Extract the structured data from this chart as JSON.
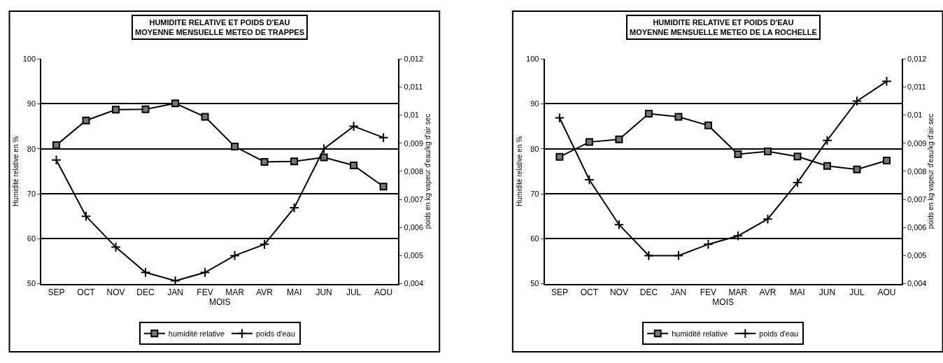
{
  "chart_data": [
    {
      "type": "line",
      "title": "HUMIDITE RELATIVE ET POIDS D'EAU",
      "subtitle": "MOYENNE MENSUELLE METEO DE TRAPPES",
      "xlabel": "MOIS",
      "ylabel": "Humidité relative en %",
      "y2label": "poids en kg vapeur d'eau/kg d'air sec",
      "categories": [
        "SEP",
        "OCT",
        "NOV",
        "DEC",
        "JAN",
        "FEV",
        "MAR",
        "AVR",
        "MAI",
        "JUN",
        "JUL",
        "AOU"
      ],
      "series": [
        {
          "name": "humidité relative",
          "color": "#000000",
          "marker": "square",
          "values": [
            80.8,
            86.3,
            88.7,
            88.8,
            90.1,
            87.1,
            80.5,
            77.1,
            77.2,
            78.1,
            76.3,
            71.6
          ]
        },
        {
          "name": "poids d'eau",
          "color": "#000000",
          "marker": "cross",
          "axis": "y2",
          "values": [
            0.0084,
            0.0064,
            0.0053,
            0.0044,
            0.0041,
            0.0044,
            0.005,
            0.0054,
            0.0067,
            0.0088,
            0.0096,
            0.0092
          ]
        }
      ],
      "ylim": [
        50,
        100
      ],
      "yticks": [
        50,
        60,
        70,
        80,
        90,
        100
      ],
      "y2lim": [
        0.004,
        0.012
      ],
      "y2ticks": [
        {
          "value": 0.004,
          "label": "0,004"
        },
        {
          "value": 0.005,
          "label": "0,005"
        },
        {
          "value": 0.006,
          "label": "0,006"
        },
        {
          "value": 0.007,
          "label": "0,007"
        },
        {
          "value": 0.008,
          "label": "0,008"
        },
        {
          "value": 0.009,
          "label": "0,009"
        },
        {
          "value": 0.01,
          "label": "0,01"
        },
        {
          "value": 0.011,
          "label": "0,011"
        },
        {
          "value": 0.012,
          "label": "0,012"
        }
      ],
      "grid": "y",
      "legend": "bottom"
    },
    {
      "type": "line",
      "title": "HUMIDITE RELATIVE ET POIDS D'EAU",
      "subtitle": "MOYENNE MENSUELLE METEO DE LA ROCHELLE",
      "xlabel": "MOIS",
      "ylabel": "Humidité relative en %",
      "y2label": "poids en kg vapeur d'eau/kg d'air sec",
      "categories": [
        "SEP",
        "OCT",
        "NOV",
        "DEC",
        "JAN",
        "FEV",
        "MAR",
        "AVR",
        "MAI",
        "JUN",
        "JUL",
        "AOU"
      ],
      "series": [
        {
          "name": "humidité relative",
          "color": "#000000",
          "marker": "square",
          "values": [
            78.2,
            81.5,
            82.1,
            87.8,
            87.1,
            85.2,
            78.8,
            79.4,
            78.3,
            76.2,
            75.4,
            77.4
          ]
        },
        {
          "name": "poids d'eau",
          "color": "#000000",
          "marker": "cross",
          "axis": "y2",
          "values": [
            0.0099,
            0.0077,
            0.0061,
            0.005,
            0.005,
            0.0054,
            0.0057,
            0.0063,
            0.0076,
            0.0091,
            0.0105,
            0.0112
          ]
        }
      ],
      "ylim": [
        50,
        100
      ],
      "yticks": [
        50,
        60,
        70,
        80,
        90,
        100
      ],
      "y2lim": [
        0.004,
        0.012
      ],
      "y2ticks": [
        {
          "value": 0.004,
          "label": "0,004"
        },
        {
          "value": 0.005,
          "label": "0,005"
        },
        {
          "value": 0.006,
          "label": "0,006"
        },
        {
          "value": 0.007,
          "label": "0,007"
        },
        {
          "value": 0.008,
          "label": "0,008"
        },
        {
          "value": 0.009,
          "label": "0,009"
        },
        {
          "value": 0.01,
          "label": "0,01"
        },
        {
          "value": 0.011,
          "label": "0,011"
        },
        {
          "value": 0.012,
          "label": "0,012"
        }
      ],
      "grid": "y",
      "legend": "bottom"
    }
  ]
}
